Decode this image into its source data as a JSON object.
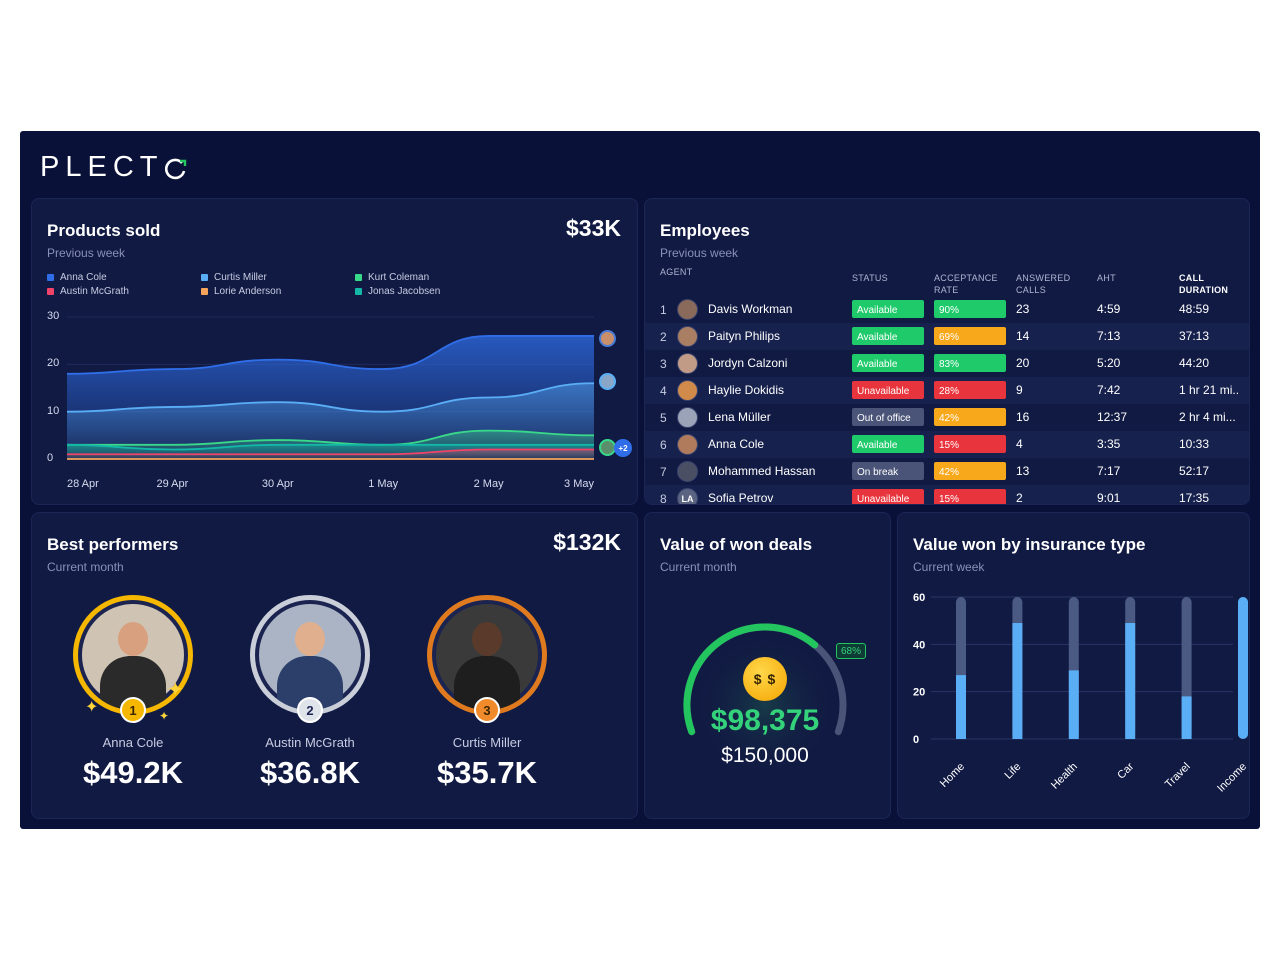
{
  "brand": {
    "logo_text": "PLECT"
  },
  "colors": {
    "background": "#0a1138",
    "card": "#111a43",
    "available": "#1fca6b",
    "unavailable": "#e8343c",
    "out": "#4a5478",
    "rate_green": "#1fca6b",
    "rate_orange": "#f7a81b",
    "rate_red": "#e8343c",
    "gauge": "#22c55e",
    "bar_fill": "#5aaef6",
    "bar_track": "#4a5a82"
  },
  "products": {
    "title": "Products sold",
    "subtitle": "Previous week",
    "total": "$33K",
    "plus_badge": "+2",
    "legend": [
      {
        "name": "Anna Cole",
        "color": "#2f6ee8"
      },
      {
        "name": "Curtis Miller",
        "color": "#5aaef6"
      },
      {
        "name": "Kurt Coleman",
        "color": "#39d98a"
      },
      {
        "name": "Austin McGrath",
        "color": "#f0436a"
      },
      {
        "name": "Lorie Anderson",
        "color": "#f7a35c"
      },
      {
        "name": "Jonas Jacobsen",
        "color": "#14b8a6"
      }
    ]
  },
  "chart_data": {
    "type": "area",
    "x": [
      "28 Apr",
      "29 Apr",
      "30 Apr",
      "1 May",
      "2 May",
      "3 May"
    ],
    "yticks": [
      "30",
      "20",
      "10",
      "0"
    ],
    "ylim": [
      0,
      30
    ],
    "series": [
      {
        "name": "Anna Cole",
        "values": [
          18,
          19,
          21,
          19,
          26,
          26
        ]
      },
      {
        "name": "Curtis Miller",
        "values": [
          10,
          11,
          12,
          10,
          13,
          16
        ]
      },
      {
        "name": "Kurt Coleman",
        "values": [
          3,
          3,
          4,
          3,
          6,
          5
        ]
      },
      {
        "name": "Jonas Jacobsen",
        "values": [
          3,
          2,
          3,
          3,
          3,
          3
        ]
      },
      {
        "name": "Austin McGrath",
        "values": [
          1,
          1,
          1,
          1,
          2,
          2
        ]
      },
      {
        "name": "Lorie Anderson",
        "values": [
          0,
          0,
          0,
          0,
          0,
          0
        ]
      }
    ]
  },
  "employees": {
    "title": "Employees",
    "subtitle": "Previous week",
    "headers": {
      "agent": "AGENT",
      "status": "STATUS",
      "rate": "ACCEPTANCE RATE",
      "calls": "ANSWERED CALLS",
      "aht": "AHT",
      "duration": "CALL DURATION"
    },
    "rows": [
      {
        "num": "1",
        "name": "Davis Workman",
        "status": "Available",
        "status_kind": "available",
        "rate": "90%",
        "rate_pct": 90,
        "rate_kind": "green",
        "calls": "23",
        "aht": "4:59",
        "duration": "48:59",
        "initials": ""
      },
      {
        "num": "2",
        "name": "Paityn Philips",
        "status": "Available",
        "status_kind": "available",
        "rate": "69%",
        "rate_pct": 69,
        "rate_kind": "orange",
        "calls": "14",
        "aht": "7:13",
        "duration": "37:13",
        "initials": ""
      },
      {
        "num": "3",
        "name": "Jordyn Calzoni",
        "status": "Available",
        "status_kind": "available",
        "rate": "83%",
        "rate_pct": 83,
        "rate_kind": "green",
        "calls": "20",
        "aht": "5:20",
        "duration": "44:20",
        "initials": ""
      },
      {
        "num": "4",
        "name": "Haylie Dokidis",
        "status": "Unavailable",
        "status_kind": "unavailable",
        "rate": "28%",
        "rate_pct": 28,
        "rate_kind": "red",
        "calls": "9",
        "aht": "7:42",
        "duration": "1 hr 21 mi..",
        "initials": ""
      },
      {
        "num": "5",
        "name": "Lena Müller",
        "status": "Out of office",
        "status_kind": "out",
        "rate": "42%",
        "rate_pct": 42,
        "rate_kind": "orange",
        "calls": "16",
        "aht": "12:37",
        "duration": "2 hr 4 mi...",
        "initials": ""
      },
      {
        "num": "6",
        "name": "Anna Cole",
        "status": "Available",
        "status_kind": "available",
        "rate": "15%",
        "rate_pct": 15,
        "rate_kind": "red",
        "calls": "4",
        "aht": "3:35",
        "duration": "10:33",
        "initials": ""
      },
      {
        "num": "7",
        "name": "Mohammed Hassan",
        "status": "On break",
        "status_kind": "out",
        "rate": "42%",
        "rate_pct": 42,
        "rate_kind": "orange",
        "calls": "13",
        "aht": "7:17",
        "duration": "52:17",
        "initials": ""
      },
      {
        "num": "8",
        "name": "Sofia Petrov",
        "status": "Unavailable",
        "status_kind": "unavailable",
        "rate": "15%",
        "rate_pct": 15,
        "rate_kind": "red",
        "calls": "2",
        "aht": "9:01",
        "duration": "17:35",
        "initials": "LA"
      }
    ]
  },
  "performers": {
    "title": "Best performers",
    "subtitle": "Current month",
    "total": "$132K",
    "items": [
      {
        "rank": "1",
        "name": "Anna Cole",
        "value": "$49.2K",
        "ring": "#f5b700",
        "badge": "#f5b700"
      },
      {
        "rank": "2",
        "name": "Austin McGrath",
        "value": "$36.8K",
        "ring": "#c9ced8",
        "badge": "#dfe3ea"
      },
      {
        "rank": "3",
        "name": "Curtis Miller",
        "value": "$35.7K",
        "ring": "#e07a1f",
        "badge": "#f08a2a"
      }
    ]
  },
  "won_deals": {
    "title": "Value of won deals",
    "subtitle": "Current month",
    "percent": "68%",
    "progress": 0.68,
    "emoji": "$ $",
    "value": "$98,375",
    "target": "$150,000"
  },
  "insurance": {
    "title": "Value won by insurance type",
    "subtitle": "Current week",
    "yticks": [
      "60",
      "40",
      "20",
      "0"
    ],
    "ymax": 60,
    "categories": [
      "Home",
      "Life",
      "Health",
      "Car",
      "Travel",
      "Income"
    ],
    "values": [
      27,
      49,
      29,
      49,
      18,
      60
    ],
    "track_max": 60
  }
}
